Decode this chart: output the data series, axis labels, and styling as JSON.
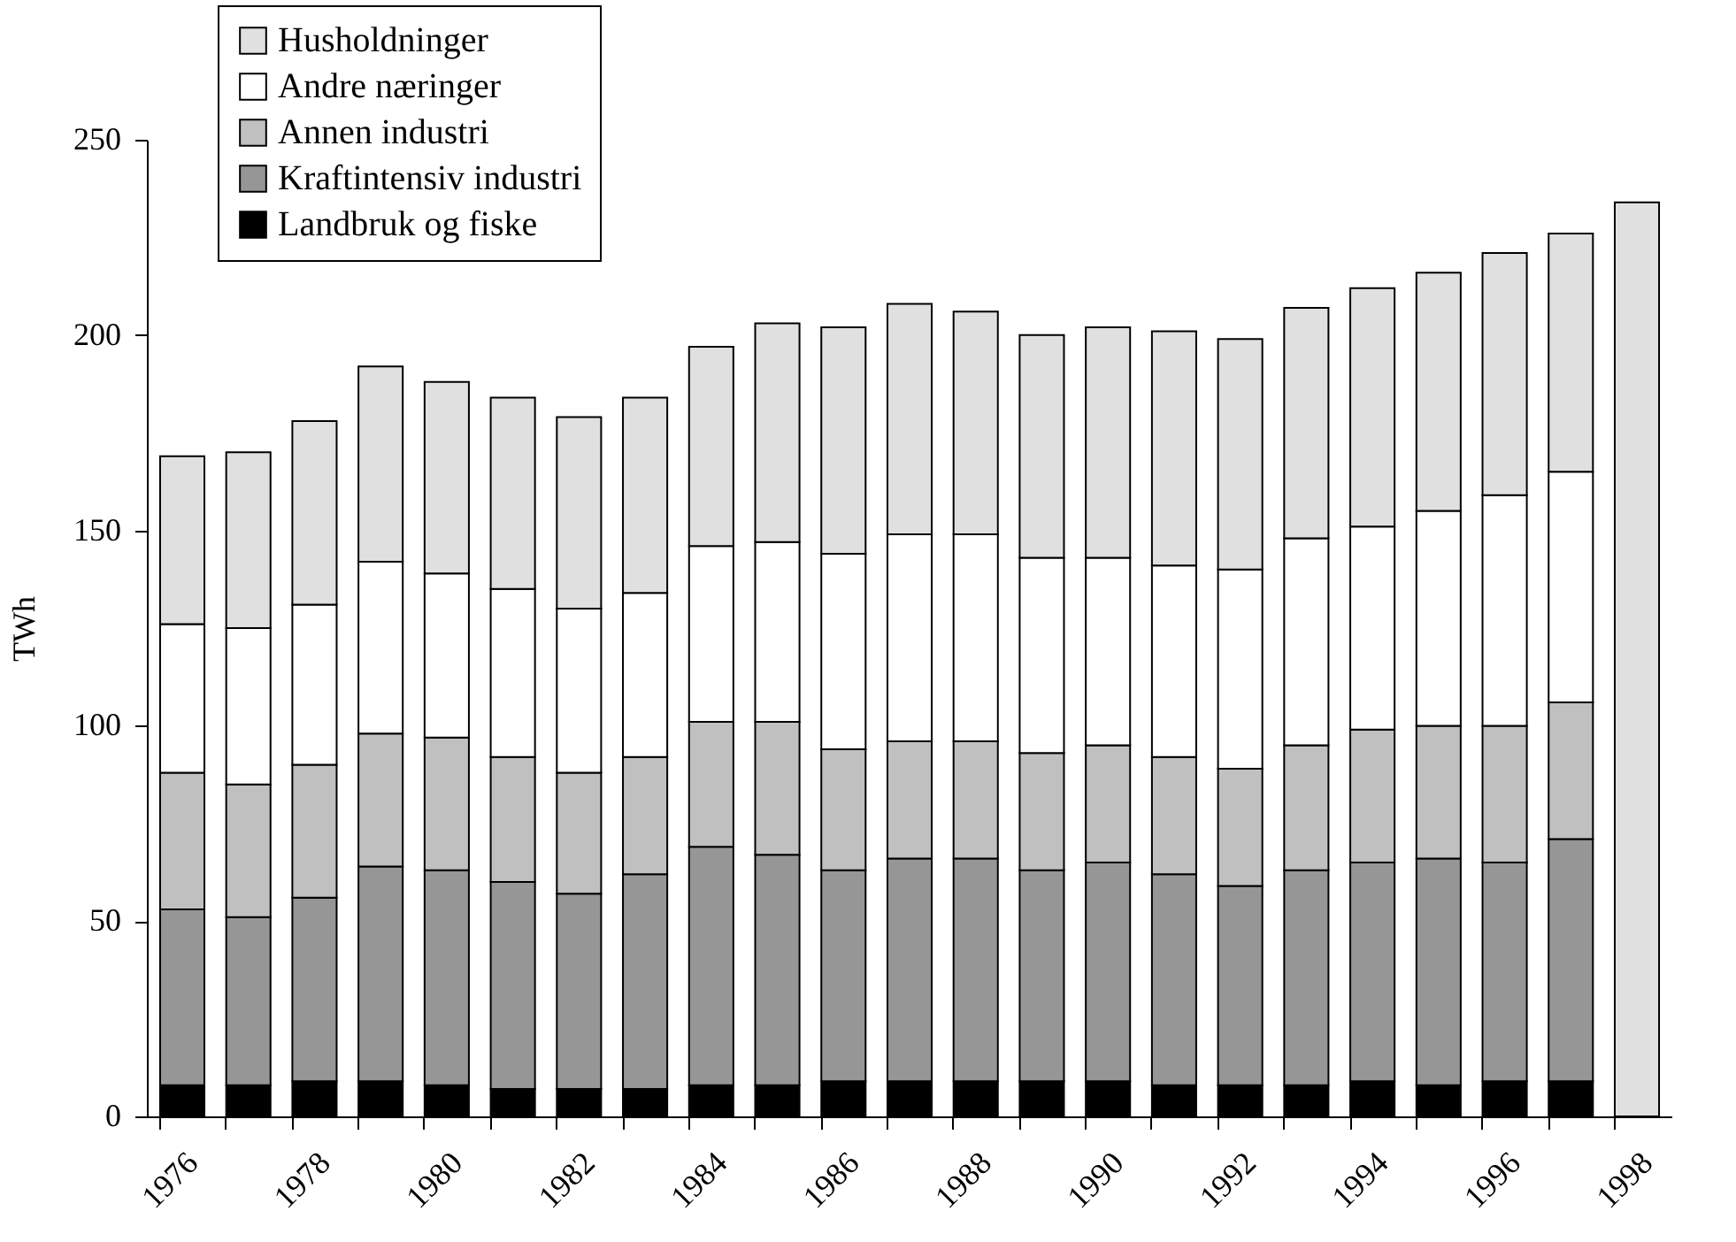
{
  "chart_data": {
    "type": "bar",
    "stacked": true,
    "ylabel": "TWh",
    "categories": [
      "1976",
      null,
      "1978",
      null,
      "1980",
      null,
      "1982",
      null,
      "1984",
      null,
      "1986",
      null,
      "1988",
      null,
      "1990",
      null,
      "1992",
      null,
      "1994",
      null,
      "1996",
      null,
      "1998"
    ],
    "ylim": [
      0,
      250
    ],
    "yticks": [
      0,
      50,
      100,
      150,
      200,
      250
    ],
    "grid": false,
    "legend": "top left",
    "series": [
      {
        "name": "Landbruk og fiske",
        "color": "#000000",
        "values": [
          8,
          8,
          9,
          9,
          8,
          7,
          7,
          7,
          8,
          8,
          9,
          9,
          9,
          9,
          9,
          8,
          8,
          8,
          9,
          8,
          9,
          9,
          null
        ]
      },
      {
        "name": "Kraftintensiv industri",
        "color": "#969696",
        "values": [
          45,
          43,
          47,
          55,
          55,
          53,
          50,
          55,
          61,
          59,
          54,
          57,
          57,
          54,
          56,
          54,
          51,
          55,
          56,
          58,
          56,
          62,
          null
        ]
      },
      {
        "name": "Annen industri",
        "color": "#c0c0c0",
        "values": [
          35,
          34,
          34,
          34,
          34,
          32,
          31,
          30,
          32,
          34,
          31,
          30,
          30,
          30,
          30,
          30,
          30,
          32,
          34,
          34,
          35,
          35,
          null
        ]
      },
      {
        "name": "Andre næringer",
        "color": "#ffffff",
        "values": [
          38,
          40,
          41,
          44,
          42,
          43,
          42,
          42,
          45,
          46,
          50,
          53,
          53,
          50,
          48,
          49,
          51,
          53,
          52,
          55,
          59,
          59,
          null
        ]
      },
      {
        "name": "Husholdninger",
        "color": "#e0e0e0",
        "values": [
          43,
          45,
          47,
          50,
          49,
          49,
          49,
          50,
          51,
          56,
          58,
          59,
          57,
          57,
          59,
          60,
          59,
          59,
          61,
          61,
          62,
          61,
          234
        ]
      }
    ]
  }
}
